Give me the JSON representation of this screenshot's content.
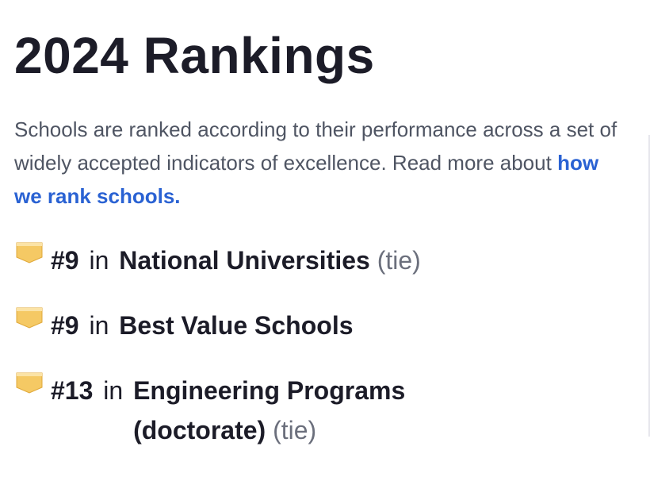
{
  "page": {
    "title": "2024 Rankings",
    "description_text": "Schools are ranked according to their performance across a set of widely accepted indicators of excellence. Read more about ",
    "description_link": "how we rank schools."
  },
  "rankings": [
    {
      "rank": "#9",
      "in_label": "in",
      "category": "National Universities",
      "tie": "(tie)"
    },
    {
      "rank": "#9",
      "in_label": "in",
      "category": "Best Value Schools",
      "tie": ""
    },
    {
      "rank": "#13",
      "in_label": "in",
      "category_line1": "Engineering Programs",
      "category_line2": "(doctorate)",
      "tie": "(tie)"
    }
  ],
  "colors": {
    "link": "#2a62d3",
    "badge": "#f5c964",
    "title": "#1c1c28"
  },
  "icons": {
    "ranking_badge": "ranking-badge-icon"
  }
}
